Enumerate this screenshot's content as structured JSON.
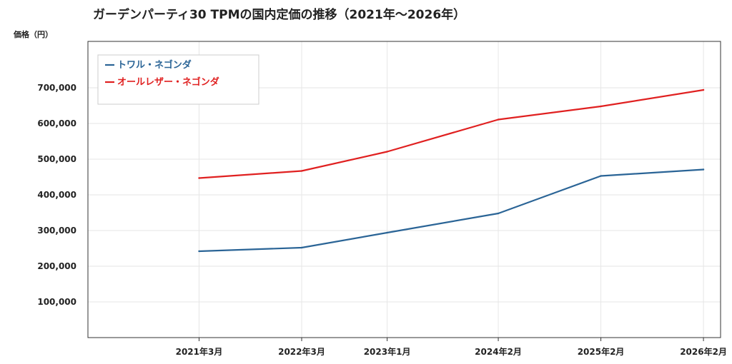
{
  "chart_data": {
    "type": "line",
    "title": "ガーデンパーティ30 TPMの国内定価の推移（2021年～2026年）",
    "ylabel": "価格（円）",
    "xlabel": "",
    "categories": [
      "2021年3月",
      "2022年3月",
      "2023年1月",
      "2024年2月",
      "2025年2月",
      "2026年2月"
    ],
    "dates": [
      "2021-03",
      "2022-03",
      "2023-01",
      "2024-02",
      "2025-02",
      "2026-02"
    ],
    "x_axis": "date",
    "ylim": [
      0,
      830000
    ],
    "yticks": [
      100000,
      200000,
      300000,
      400000,
      500000,
      600000,
      700000
    ],
    "ytick_labels": [
      "100,000",
      "200,000",
      "300,000",
      "400,000",
      "500,000",
      "600,000",
      "700,000"
    ],
    "grid": true,
    "legend_position": "top-left",
    "series": [
      {
        "name": "トワル・ネゴンダ",
        "color": "#2a6496",
        "values": [
          242000,
          252000,
          294000,
          348000,
          453000,
          471000
        ]
      },
      {
        "name": "オールレザー・ネゴンダ",
        "color": "#e02020",
        "values": [
          447000,
          467000,
          521000,
          611000,
          648000,
          694000
        ]
      }
    ]
  }
}
